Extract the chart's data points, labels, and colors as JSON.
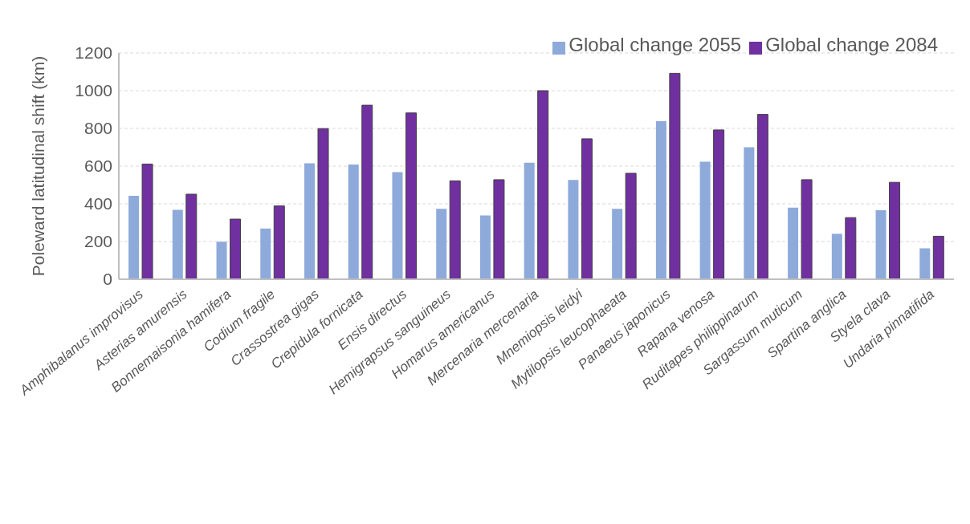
{
  "chart_data": {
    "type": "bar",
    "ylabel": "Poleward latitudinal shift (km)",
    "categories": [
      "Amphibalanus improvisus",
      "Asterias amurensis",
      "Bonnemaisonia hamifera",
      "Codium fragile",
      "Crassostrea gigas",
      "Crepidula fornicata",
      "Ensis directus",
      "Hemigrapsus sanguineus",
      "Homarus americanus",
      "Mercenaria mercenaria",
      "Mnemiopsis leidyi",
      "Mytilopsis leucophaeata",
      "Panaeus japonicus",
      "Rapana venosa",
      "Ruditapes philippinarum",
      "Sargassum muticum",
      "Spartina anglica",
      "Styela clava",
      "Undaria pinnatifida"
    ],
    "series": [
      {
        "name": "Global change 2055",
        "color": "#8eaadb",
        "values": [
          443,
          368,
          199,
          269,
          615,
          609,
          568,
          373,
          338,
          618,
          527,
          373,
          838,
          623,
          700,
          380,
          241,
          366,
          164
        ]
      },
      {
        "name": "Global change 2084",
        "color": "#7030a0",
        "values": [
          611,
          451,
          319,
          389,
          799,
          923,
          882,
          522,
          528,
          1000,
          745,
          562,
          1092,
          792,
          874,
          528,
          327,
          514,
          228
        ]
      }
    ],
    "ylim": [
      0,
      1200
    ],
    "yticks": [
      0,
      200,
      400,
      600,
      800,
      1000,
      1200
    ],
    "grid": "y",
    "legend": "top right"
  }
}
